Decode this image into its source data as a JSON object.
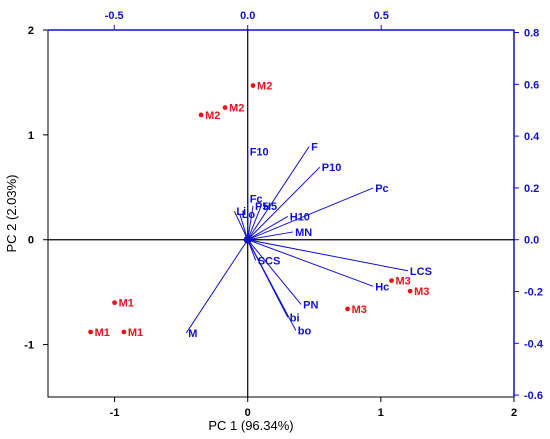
{
  "chart_data": {
    "type": "biplot",
    "xlabel": "PC 1 (96.34%)",
    "ylabel": "PC 2 (2.03%)",
    "xlim": [
      -1.5,
      2
    ],
    "ylim": [
      -1.5,
      2
    ],
    "x_ticks": [
      {
        "value": -1,
        "label": "-1"
      },
      {
        "value": 0,
        "label": "0"
      },
      {
        "value": 1,
        "label": "1"
      },
      {
        "value": 2,
        "label": "2"
      }
    ],
    "y_ticks": [
      {
        "value": -1,
        "label": "-1"
      },
      {
        "value": 0,
        "label": "0"
      },
      {
        "value": 1,
        "label": "1"
      },
      {
        "value": 2,
        "label": "2"
      }
    ],
    "loadings_xlim": [
      -0.7,
      1.0
    ],
    "loadings_ylim": [
      -0.6,
      0.8
    ],
    "top_ticks": [
      {
        "value": -0.5,
        "label": "-0.5"
      },
      {
        "value": 0.0,
        "label": "0.0"
      },
      {
        "value": 0.5,
        "label": "0.5"
      }
    ],
    "right_ticks": [
      {
        "value": 0.8,
        "label": "0.8"
      },
      {
        "value": 0.6,
        "label": "0.6"
      },
      {
        "value": 0.4,
        "label": "0.4"
      },
      {
        "value": 0.2,
        "label": "0.2"
      },
      {
        "value": 0.0,
        "label": "0.0"
      },
      {
        "value": -0.2,
        "label": "-0.2"
      },
      {
        "value": -0.4,
        "label": "-0.4"
      },
      {
        "value": -0.6,
        "label": "-0.6"
      }
    ],
    "observations": [
      {
        "label": "M2",
        "x": 0.04,
        "y": 1.47
      },
      {
        "label": "M2",
        "x": -0.17,
        "y": 1.26
      },
      {
        "label": "M2",
        "x": -0.35,
        "y": 1.19
      },
      {
        "label": "M1",
        "x": -1.0,
        "y": -0.6
      },
      {
        "label": "M1",
        "x": -1.18,
        "y": -0.88
      },
      {
        "label": "M1",
        "x": -0.93,
        "y": -0.88
      },
      {
        "label": "M3",
        "x": 1.08,
        "y": -0.39
      },
      {
        "label": "M3",
        "x": 1.22,
        "y": -0.49
      },
      {
        "label": "M3",
        "x": 0.75,
        "y": -0.66
      }
    ],
    "variables": [
      {
        "label": "F10",
        "x": 0.0,
        "y": 0.34
      },
      {
        "label": "F",
        "x": 0.23,
        "y": 0.36
      },
      {
        "label": "P10",
        "x": 0.27,
        "y": 0.28
      },
      {
        "label": "Pc",
        "x": 0.47,
        "y": 0.2
      },
      {
        "label": "Fc",
        "x": 0.0,
        "y": 0.16
      },
      {
        "label": "P5",
        "x": 0.02,
        "y": 0.13
      },
      {
        "label": "H5",
        "x": 0.05,
        "y": 0.13
      },
      {
        "label": "Li",
        "x": -0.05,
        "y": 0.11
      },
      {
        "label": "Lo",
        "x": -0.03,
        "y": 0.1
      },
      {
        "label": "H10",
        "x": 0.15,
        "y": 0.09
      },
      {
        "label": "MN",
        "x": 0.17,
        "y": 0.03
      },
      {
        "label": "LCS",
        "x": 0.6,
        "y": -0.12
      },
      {
        "label": "Hc",
        "x": 0.47,
        "y": -0.18
      },
      {
        "label": "SCS",
        "x": 0.03,
        "y": -0.08
      },
      {
        "label": "PN",
        "x": 0.2,
        "y": -0.25
      },
      {
        "label": "bi",
        "x": 0.15,
        "y": -0.3
      },
      {
        "label": "bo",
        "x": 0.18,
        "y": -0.35
      },
      {
        "label": "M",
        "x": -0.23,
        "y": -0.36
      }
    ]
  },
  "colors": {
    "axes": "#000000",
    "loading_axes": "#1010d0",
    "vectors": "#1010d0",
    "observations": "#e8141a"
  }
}
